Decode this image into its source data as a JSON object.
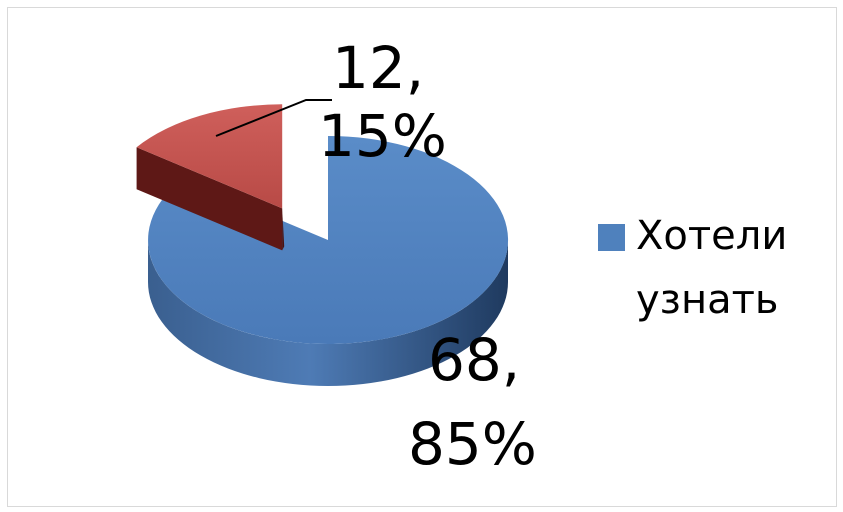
{
  "chart_data": {
    "type": "pie",
    "style": "3d-exploded",
    "categories": [
      "",
      "Хотели узнать"
    ],
    "values": [
      12,
      68
    ],
    "percentages": [
      "15%",
      "85%"
    ],
    "data_labels": [
      {
        "value": "12,",
        "percent": "15%"
      },
      {
        "value": "68,",
        "percent": "85%"
      }
    ],
    "colors": [
      "#c0504d",
      "#4f81bd"
    ],
    "title": "",
    "legend": {
      "position": "right",
      "items": [
        {
          "label": "Хотели узнать",
          "color": "#4f81bd"
        }
      ]
    }
  }
}
